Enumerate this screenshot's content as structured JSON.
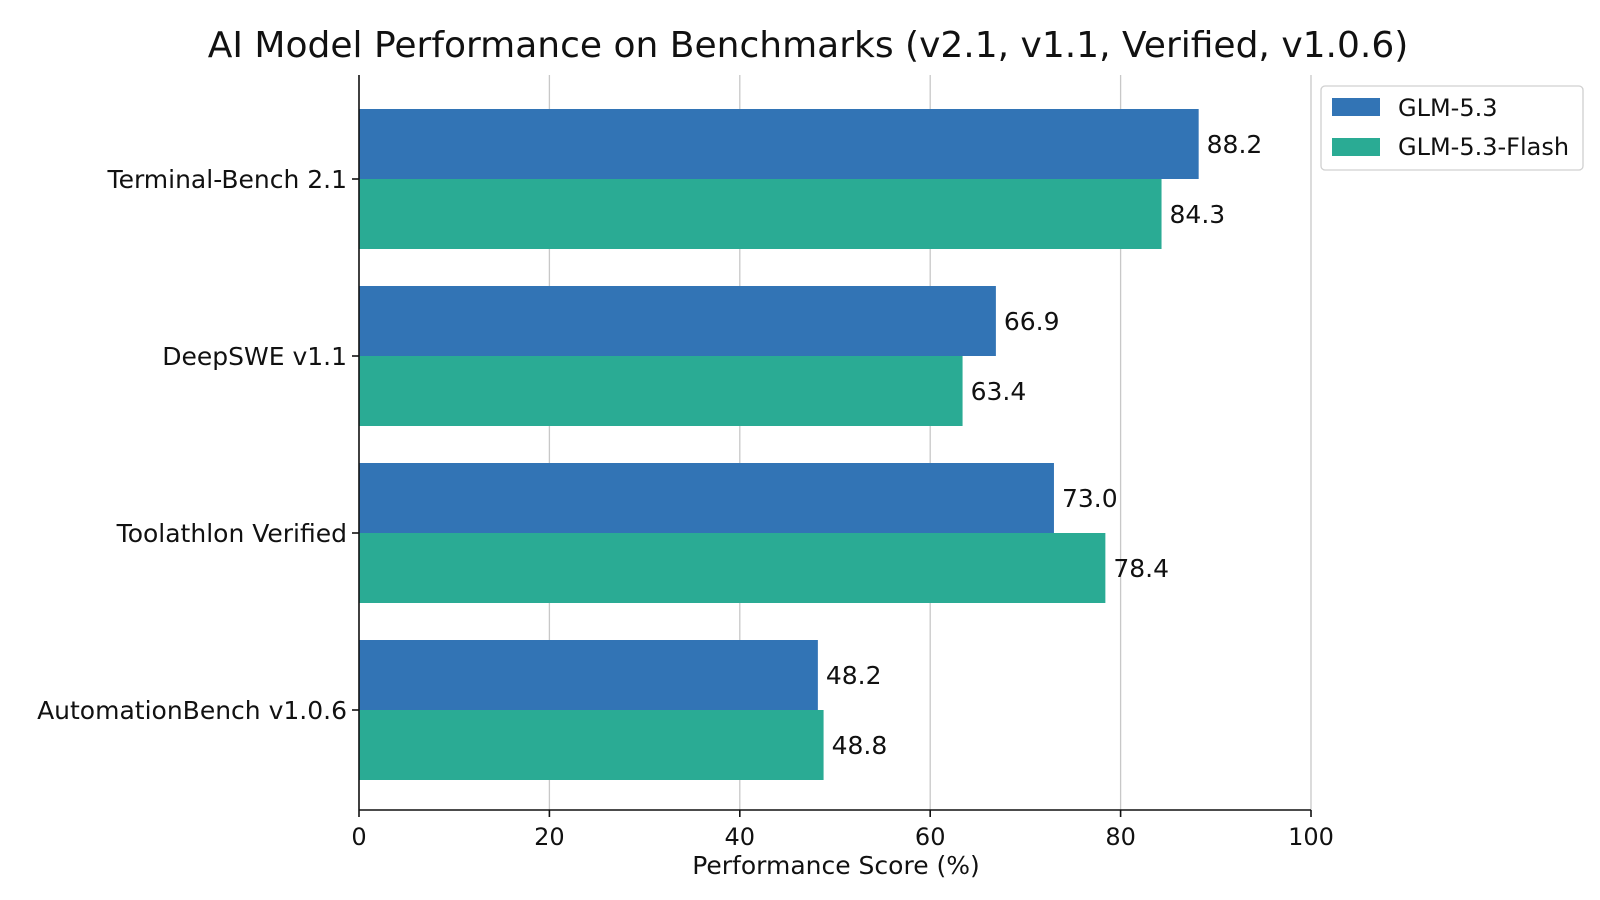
{
  "chart_data": {
    "type": "bar",
    "orientation": "horizontal",
    "title": "AI Model Performance on Benchmarks (v2.1, v1.1, Verified, v1.0.6)",
    "xlabel": "Performance Score (%)",
    "ylabel": "",
    "xlim": [
      0,
      100
    ],
    "xticks": [
      0,
      20,
      40,
      60,
      80,
      100
    ],
    "grid": "vertical",
    "legend_position": "top-right",
    "categories": [
      "Terminal-Bench 2.1",
      "DeepSWE v1.1",
      "Toolathlon Verified",
      "AutomationBench v1.0.6"
    ],
    "series": [
      {
        "name": "GLM-5.3",
        "color": "#3274b5",
        "values": [
          88.2,
          66.9,
          73.0,
          48.2
        ],
        "labels": [
          "88.2",
          "66.9",
          "73.0",
          "48.2"
        ]
      },
      {
        "name": "GLM-5.3-Flash",
        "color": "#2aab94",
        "values": [
          84.3,
          63.4,
          78.4,
          48.8
        ],
        "labels": [
          "84.3",
          "63.4",
          "78.4",
          "48.8"
        ]
      }
    ]
  }
}
